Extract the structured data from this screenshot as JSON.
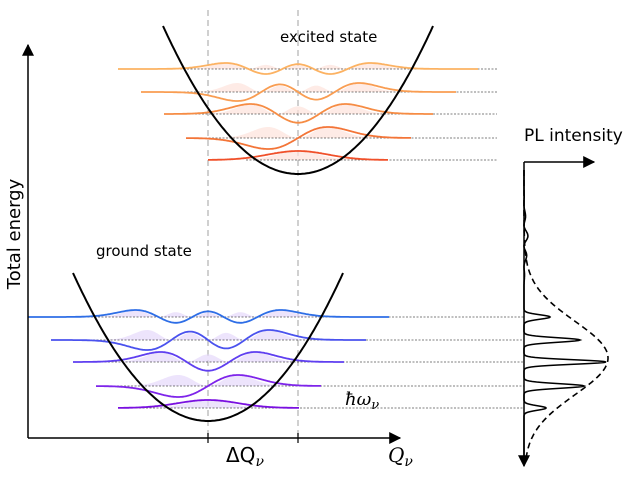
{
  "labels": {
    "y_axis": "Total energy",
    "x_axis": "Q",
    "x_axis_sub": "ν",
    "delta_q": "ΔQ",
    "delta_q_sub": "ν",
    "phonon_energy": "ħω",
    "phonon_energy_sub": "ν",
    "excited_state": "excited state",
    "ground_state": "ground state",
    "pl_intensity": "PL intensity"
  },
  "colors": {
    "ground_levels": [
      "#7a10e0",
      "#7e24ea",
      "#5f3ff0",
      "#4a52ee",
      "#2e6ee6"
    ],
    "excited_levels": [
      "#f0502a",
      "#f37538",
      "#f68c44",
      "#f99d52",
      "#fcb262"
    ],
    "ground_fill": "#e6d8fb",
    "excited_fill": "#fde2dc",
    "guide_line": "#c0c0c0"
  },
  "model": {
    "ground_levels": 5,
    "excited_levels": 5,
    "displacement": "ΔQ",
    "spectrum": {
      "lines": 5,
      "line_shape": "narrow peaks at phonon replicas",
      "envelope": "broad Gaussian (dashed)"
    }
  }
}
